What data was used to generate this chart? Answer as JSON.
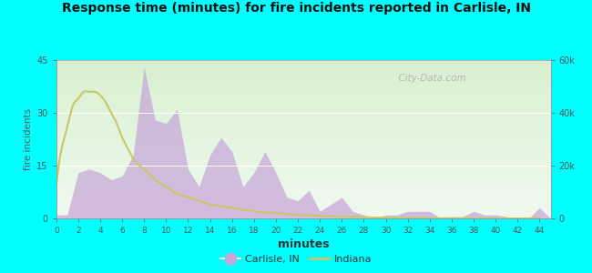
{
  "title": "Response time (minutes) for fire incidents reported in Carlisle, IN",
  "xlabel": "minutes",
  "ylabel": "fire incidents",
  "background_outer": "#00ffff",
  "xlim": [
    0,
    45
  ],
  "ylim": [
    0,
    45
  ],
  "ylim_right": [
    0,
    60000
  ],
  "yticks_left": [
    0,
    15,
    30,
    45
  ],
  "yticks_right": [
    0,
    20000,
    40000,
    60000
  ],
  "ytick_labels_right": [
    "0",
    "20k",
    "40k",
    "60k"
  ],
  "xticks": [
    0,
    2,
    4,
    6,
    8,
    10,
    12,
    14,
    16,
    18,
    20,
    22,
    24,
    26,
    28,
    30,
    32,
    34,
    36,
    38,
    40,
    42,
    44
  ],
  "carlisle_x": [
    0,
    1,
    2,
    3,
    4,
    5,
    6,
    7,
    8,
    9,
    10,
    11,
    12,
    13,
    14,
    15,
    16,
    17,
    18,
    19,
    20,
    21,
    22,
    23,
    24,
    25,
    26,
    27,
    28,
    29,
    30,
    31,
    32,
    33,
    34,
    35,
    36,
    37,
    38,
    39,
    40,
    41,
    42,
    43,
    44,
    45
  ],
  "carlisle_y": [
    1,
    1,
    13,
    14,
    13,
    11,
    12,
    18,
    43,
    28,
    27,
    31,
    14,
    9,
    18,
    23,
    19,
    9,
    13,
    19,
    13,
    6,
    5,
    8,
    2,
    4,
    6,
    2,
    1,
    0,
    1,
    1,
    2,
    2,
    2,
    0,
    0.5,
    0.5,
    2,
    1,
    1,
    0.5,
    0,
    0,
    3,
    0
  ],
  "indiana_x": [
    0,
    0.5,
    1,
    1.5,
    2,
    2.5,
    3,
    3.5,
    4,
    4.5,
    5,
    5.5,
    6,
    6.5,
    7,
    8,
    9,
    10,
    11,
    12,
    13,
    14,
    15,
    16,
    17,
    18,
    20,
    22,
    24,
    26,
    28,
    30,
    32,
    34,
    36,
    38,
    40,
    42,
    44,
    45
  ],
  "indiana_y": [
    9,
    20,
    26,
    32,
    34,
    36,
    36,
    36,
    35,
    33,
    30,
    27,
    23,
    20,
    17,
    14,
    11,
    9,
    7,
    6,
    5,
    4,
    3.5,
    3,
    2.5,
    2,
    1.5,
    1,
    0.7,
    0.5,
    0.3,
    0.2,
    0.1,
    0.05,
    0.02,
    0.01,
    0,
    0,
    0,
    0
  ],
  "carlisle_fill_color": "#c8a8d8",
  "carlisle_fill_alpha": 0.75,
  "indiana_color": "#c8c864",
  "indiana_linewidth": 1.5,
  "watermark": "  City-Data.com",
  "legend_carlisle": "Carlisle, IN",
  "legend_indiana": "Indiana"
}
